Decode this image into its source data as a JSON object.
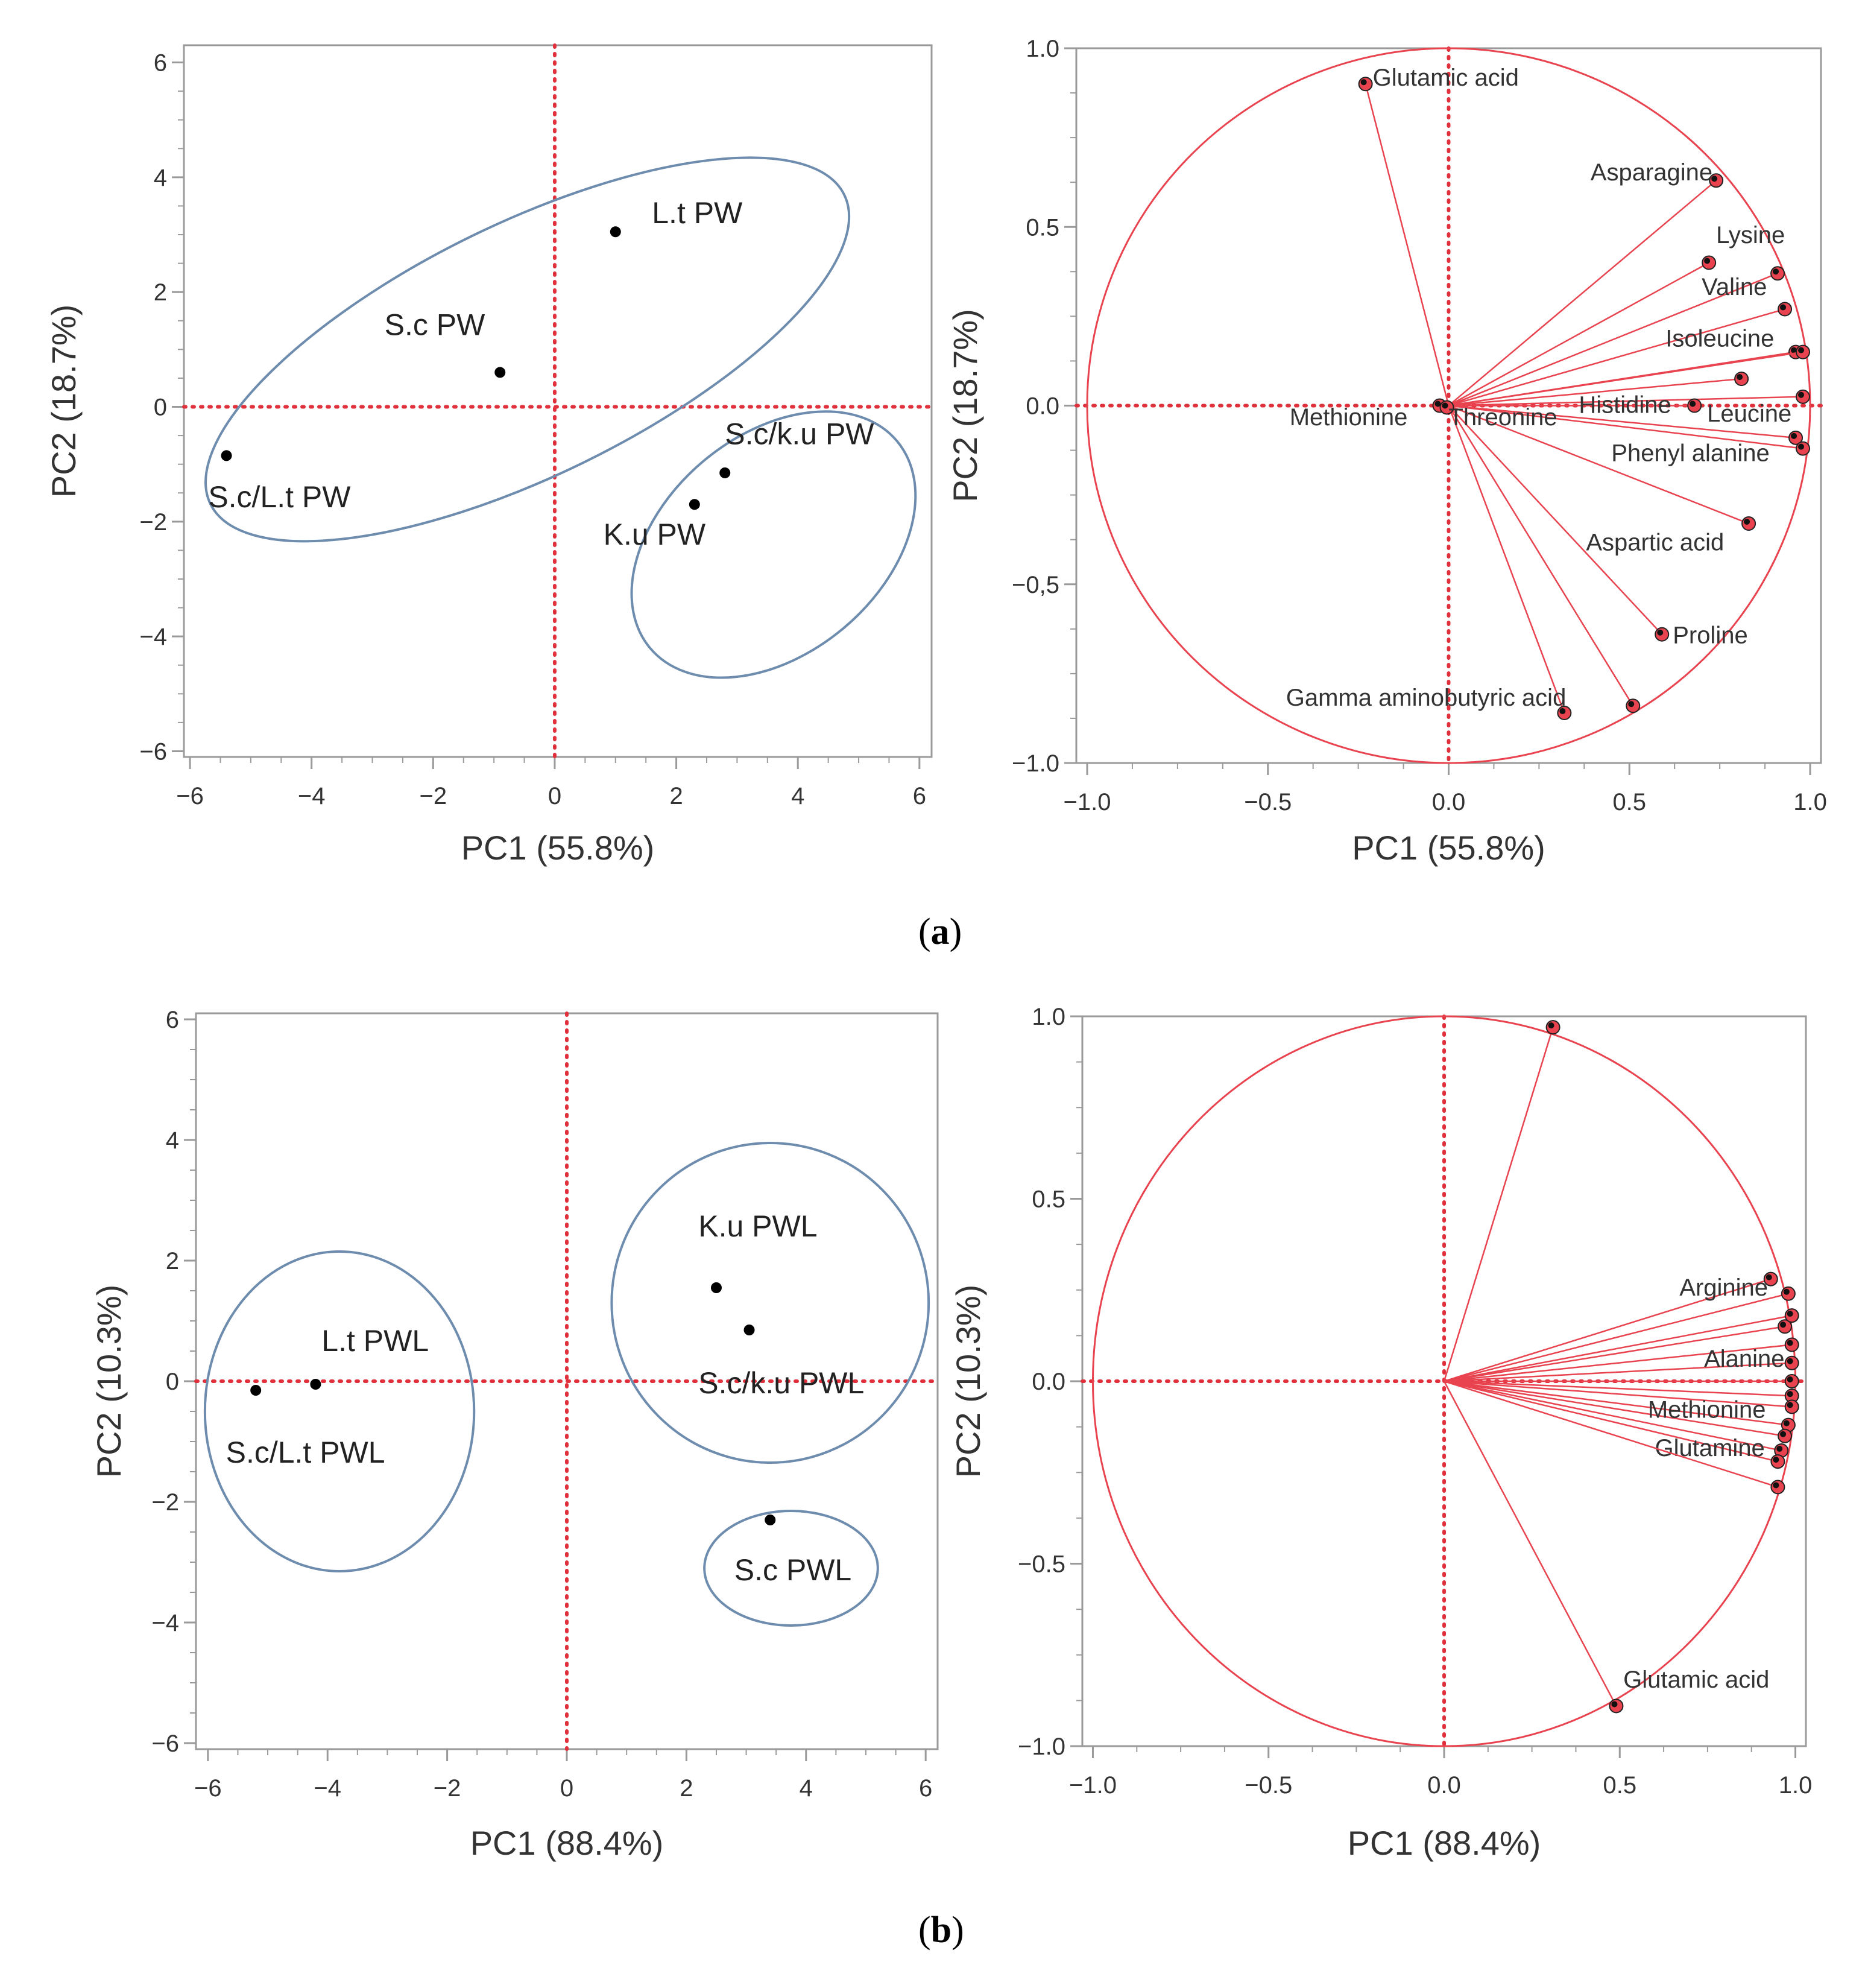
{
  "figure": {
    "panels": [
      {
        "letter": "a",
        "open": "(",
        "close": ")"
      },
      {
        "letter": "b",
        "open": "(",
        "close": ")"
      }
    ]
  },
  "colors": {
    "score_ellipse": "#6e8cae",
    "loading": "#e8434f",
    "reference_line": "#e0303c",
    "axis": "#9a9a9a",
    "text": "#333333",
    "point": "#000000"
  },
  "chart_data": [
    {
      "id": "a-scores",
      "type": "scatter",
      "xlabel": "PC1 (55.8%)",
      "ylabel": "PC2 (18.7%)",
      "xlim": [
        -6.1,
        6.2
      ],
      "ylim": [
        -6.1,
        6.3
      ],
      "xticks": [
        {
          "v": -6,
          "label": "−6"
        },
        {
          "v": -4,
          "label": "−4"
        },
        {
          "v": -2,
          "label": "−2"
        },
        {
          "v": 0,
          "label": "0"
        },
        {
          "v": 2,
          "label": "2"
        },
        {
          "v": 4,
          "label": "4"
        },
        {
          "v": 6,
          "label": "6"
        }
      ],
      "yticks": [
        {
          "v": -6,
          "label": "−6"
        },
        {
          "v": -4,
          "label": "−4"
        },
        {
          "v": -2,
          "label": "−2"
        },
        {
          "v": 0,
          "label": "0"
        },
        {
          "v": 2,
          "label": "2"
        },
        {
          "v": 4,
          "label": "4"
        },
        {
          "v": 6,
          "label": "6"
        }
      ],
      "points": [
        {
          "label": "L.t PW",
          "x": 1.0,
          "y": 3.05,
          "label_x": 1.6,
          "label_y": 3.2
        },
        {
          "label": "S.c PW",
          "x": -0.9,
          "y": 0.6,
          "label_x": -2.8,
          "label_y": 1.25
        },
        {
          "label": "S.c/L.t PW",
          "x": -5.4,
          "y": -0.85,
          "label_x": -5.7,
          "label_y": -1.75
        },
        {
          "label": "S.c/k.u PW",
          "x": 2.8,
          "y": -1.15,
          "label_x": 2.8,
          "label_y": -0.65
        },
        {
          "label": "K.u PW",
          "x": 2.3,
          "y": -1.7,
          "label_x": 0.8,
          "label_y": -2.4
        }
      ],
      "ellipses": [
        {
          "cx": -0.45,
          "cy": 1.0,
          "rx": 5.8,
          "ry": 2.2,
          "angle": 26
        },
        {
          "cx": 3.6,
          "cy": -2.4,
          "rx": 2.65,
          "ry": 1.9,
          "angle": 40
        }
      ]
    },
    {
      "id": "a-loadings",
      "type": "scatter",
      "xlabel": "PC1 (55.8%)",
      "ylabel": "PC2 (18.7%)",
      "xlim": [
        -1.03,
        1.03
      ],
      "ylim": [
        -1.0,
        1.0
      ],
      "xticks": [
        {
          "v": -1.0,
          "label": "−1.0"
        },
        {
          "v": -0.5,
          "label": "−0.5"
        },
        {
          "v": 0,
          "label": "0.0"
        },
        {
          "v": 0.5,
          "label": "0.5"
        },
        {
          "v": 1.0,
          "label": "1.0"
        }
      ],
      "yticks": [
        {
          "v": -1.0,
          "label": "−1.0"
        },
        {
          "v": -0.5,
          "label": "−0,5"
        },
        {
          "v": 0,
          "label": "0.0"
        },
        {
          "v": 0.5,
          "label": "0.5"
        },
        {
          "v": 1.0,
          "label": "1.0"
        }
      ],
      "circle": true,
      "vectors": [
        {
          "x": -0.23,
          "y": 0.9,
          "label": "Glutamic acid",
          "label_x": -0.21,
          "label_y": 0.895,
          "anchor": "start"
        },
        {
          "x": 0.74,
          "y": 0.63,
          "label": "Asparagine",
          "label_x": 0.73,
          "label_y": 0.63,
          "anchor": "end"
        },
        {
          "x": 0.72,
          "y": 0.4,
          "label": "Lysine",
          "label_x": 0.74,
          "label_y": 0.455,
          "anchor": "start"
        },
        {
          "x": 0.91,
          "y": 0.37,
          "label": "",
          "label_x": 0,
          "label_y": 0,
          "anchor": "start"
        },
        {
          "x": 0.93,
          "y": 0.27,
          "label": "Valine",
          "label_x": 0.7,
          "label_y": 0.31,
          "anchor": "start"
        },
        {
          "x": 0.96,
          "y": 0.15,
          "label": "Isoleucine",
          "label_x": 0.6,
          "label_y": 0.165,
          "anchor": "start"
        },
        {
          "x": 0.98,
          "y": 0.15,
          "label": "",
          "label_x": 0,
          "label_y": 0,
          "anchor": "start"
        },
        {
          "x": 0.81,
          "y": 0.075,
          "label": "",
          "label_x": 0,
          "label_y": 0,
          "anchor": "start"
        },
        {
          "x": 0.98,
          "y": 0.025,
          "label": "",
          "label_x": 0,
          "label_y": 0,
          "anchor": "start"
        },
        {
          "x": 0.68,
          "y": 0.0,
          "label": "Histidine",
          "label_x": 0.36,
          "label_y": -0.02,
          "anchor": "start"
        },
        {
          "x": 0.96,
          "y": -0.09,
          "label": "Leucine",
          "label_x": 0.715,
          "label_y": -0.045,
          "anchor": "start"
        },
        {
          "x": 0.98,
          "y": -0.12,
          "label": "Phenyl alanine",
          "label_x": 0.45,
          "label_y": -0.155,
          "anchor": "start"
        },
        {
          "x": 0.83,
          "y": -0.33,
          "label": "Aspartic acid",
          "label_x": 0.38,
          "label_y": -0.405,
          "anchor": "start"
        },
        {
          "x": 0.59,
          "y": -0.64,
          "label": "Proline",
          "label_x": 0.62,
          "label_y": -0.665,
          "anchor": "start"
        },
        {
          "x": 0.51,
          "y": -0.84,
          "label": "",
          "label_x": 0,
          "label_y": 0,
          "anchor": "start"
        },
        {
          "x": 0.32,
          "y": -0.86,
          "label": "Gamma aminobutyric acid",
          "label_x": -0.45,
          "label_y": -0.84,
          "anchor": "start"
        },
        {
          "x": -0.025,
          "y": 0.0,
          "label": "Methionine",
          "label_x": -0.44,
          "label_y": -0.055,
          "anchor": "start"
        },
        {
          "x": -0.005,
          "y": -0.005,
          "label": "Threonine",
          "label_x": 0.0,
          "label_y": -0.055,
          "anchor": "start"
        }
      ]
    },
    {
      "id": "b-scores",
      "type": "scatter",
      "xlabel": "PC1 (88.4%)",
      "ylabel": "PC2 (10.3%)",
      "xlim": [
        -6.2,
        6.2
      ],
      "ylim": [
        -6.1,
        6.1
      ],
      "xticks": [
        {
          "v": -6,
          "label": "−6"
        },
        {
          "v": -4,
          "label": "−4"
        },
        {
          "v": -2,
          "label": "−2"
        },
        {
          "v": 0,
          "label": "0"
        },
        {
          "v": 2,
          "label": "2"
        },
        {
          "v": 4,
          "label": "4"
        },
        {
          "v": 6,
          "label": "6"
        }
      ],
      "yticks": [
        {
          "v": -6,
          "label": "−6"
        },
        {
          "v": -4,
          "label": "−4"
        },
        {
          "v": -2,
          "label": "−2"
        },
        {
          "v": 0,
          "label": "0"
        },
        {
          "v": 2,
          "label": "2"
        },
        {
          "v": 4,
          "label": "4"
        },
        {
          "v": 6,
          "label": "6"
        }
      ],
      "points": [
        {
          "label": "L.t PWL",
          "x": -4.2,
          "y": -0.05,
          "label_x": -4.1,
          "label_y": 0.5
        },
        {
          "label": "S.c/L.t PWL",
          "x": -5.2,
          "y": -0.15,
          "label_x": -5.7,
          "label_y": -1.35
        },
        {
          "label": "K.u PWL",
          "x": 2.5,
          "y": 1.55,
          "label_x": 2.2,
          "label_y": 2.4
        },
        {
          "label": "S.c/k.u PWL",
          "x": 3.05,
          "y": 0.85,
          "label_x": 2.2,
          "label_y": -0.2
        },
        {
          "label": "S.c PWL",
          "x": 3.4,
          "y": -2.3,
          "label_x": 2.8,
          "label_y": -3.3
        }
      ],
      "ellipses": [
        {
          "cx": -3.8,
          "cy": -0.5,
          "rx": 2.25,
          "ry": 2.65,
          "angle": 0
        },
        {
          "cx": 3.4,
          "cy": 1.3,
          "rx": 2.65,
          "ry": 2.65,
          "angle": 0
        },
        {
          "cx": 3.75,
          "cy": -3.1,
          "rx": 1.45,
          "ry": 0.95,
          "angle": 0
        }
      ]
    },
    {
      "id": "b-loadings",
      "type": "scatter",
      "xlabel": "PC1 (88.4%)",
      "ylabel": "PC2 (10.3%)",
      "xlim": [
        -1.03,
        1.03
      ],
      "ylim": [
        -1.0,
        1.0
      ],
      "xticks": [
        {
          "v": -1.0,
          "label": "−1.0"
        },
        {
          "v": -0.5,
          "label": "−0.5"
        },
        {
          "v": 0,
          "label": "0.0"
        },
        {
          "v": 0.5,
          "label": "0.5"
        },
        {
          "v": 1.0,
          "label": "1.0"
        }
      ],
      "yticks": [
        {
          "v": -1.0,
          "label": "−1.0"
        },
        {
          "v": -0.5,
          "label": "−0.5"
        },
        {
          "v": 0,
          "label": "0.0"
        },
        {
          "v": 0.5,
          "label": "0.5"
        },
        {
          "v": 1.0,
          "label": "1.0"
        }
      ],
      "circle": true,
      "vectors": [
        {
          "x": 0.31,
          "y": 0.97,
          "label": "",
          "label_x": 0,
          "label_y": 0,
          "anchor": "start"
        },
        {
          "x": 0.93,
          "y": 0.28,
          "label": "Arginine",
          "label_x": 0.67,
          "label_y": 0.235,
          "anchor": "start"
        },
        {
          "x": 0.98,
          "y": 0.24,
          "label": "",
          "label_x": 0,
          "label_y": 0,
          "anchor": "start"
        },
        {
          "x": 0.97,
          "y": 0.15,
          "label": "",
          "label_x": 0,
          "label_y": 0,
          "anchor": "start"
        },
        {
          "x": 0.99,
          "y": 0.18,
          "label": "",
          "label_x": 0,
          "label_y": 0,
          "anchor": "start"
        },
        {
          "x": 0.99,
          "y": 0.1,
          "label": "",
          "label_x": 0,
          "label_y": 0,
          "anchor": "start"
        },
        {
          "x": 0.99,
          "y": 0.05,
          "label": "",
          "label_x": 0,
          "label_y": 0,
          "anchor": "start"
        },
        {
          "x": 0.99,
          "y": 0.0,
          "label": "Alanine",
          "label_x": 0.74,
          "label_y": 0.04,
          "anchor": "start"
        },
        {
          "x": 0.99,
          "y": -0.04,
          "label": "",
          "label_x": 0,
          "label_y": 0,
          "anchor": "start"
        },
        {
          "x": 0.99,
          "y": -0.07,
          "label": "",
          "label_x": 0,
          "label_y": 0,
          "anchor": "start"
        },
        {
          "x": 0.98,
          "y": -0.12,
          "label": "",
          "label_x": 0,
          "label_y": 0,
          "anchor": "start"
        },
        {
          "x": 0.97,
          "y": -0.15,
          "label": "Methionine",
          "label_x": 0.58,
          "label_y": -0.1,
          "anchor": "start"
        },
        {
          "x": 0.96,
          "y": -0.19,
          "label": "",
          "label_x": 0,
          "label_y": 0,
          "anchor": "start"
        },
        {
          "x": 0.95,
          "y": -0.22,
          "label": "Glutamine",
          "label_x": 0.6,
          "label_y": -0.205,
          "anchor": "start"
        },
        {
          "x": 0.95,
          "y": -0.29,
          "label": "",
          "label_x": 0,
          "label_y": 0,
          "anchor": "start"
        },
        {
          "x": 0.49,
          "y": -0.89,
          "label": "Glutamic acid",
          "label_x": 0.51,
          "label_y": -0.84,
          "anchor": "start"
        }
      ]
    }
  ]
}
